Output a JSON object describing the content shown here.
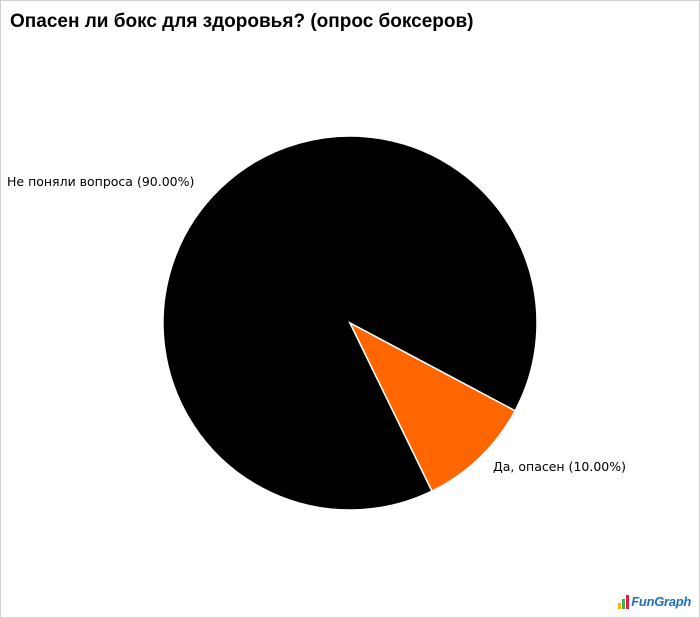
{
  "chart_data": {
    "type": "pie",
    "title": "Опасен ли бокс для здоровья? (опрос боксеров)",
    "slices": [
      {
        "label": "Не поняли вопроса (90.00%)",
        "value": 90.0,
        "color": "#000000"
      },
      {
        "label": "Да, опасен (10.00%)",
        "value": 10.0,
        "color": "#ff6600"
      }
    ],
    "legend": "none",
    "labels": "outside"
  },
  "watermark": {
    "text": "FunGraph",
    "colors": [
      "#f7b500",
      "#3cb44b",
      "#e6194b",
      "#1f6fbf"
    ]
  }
}
